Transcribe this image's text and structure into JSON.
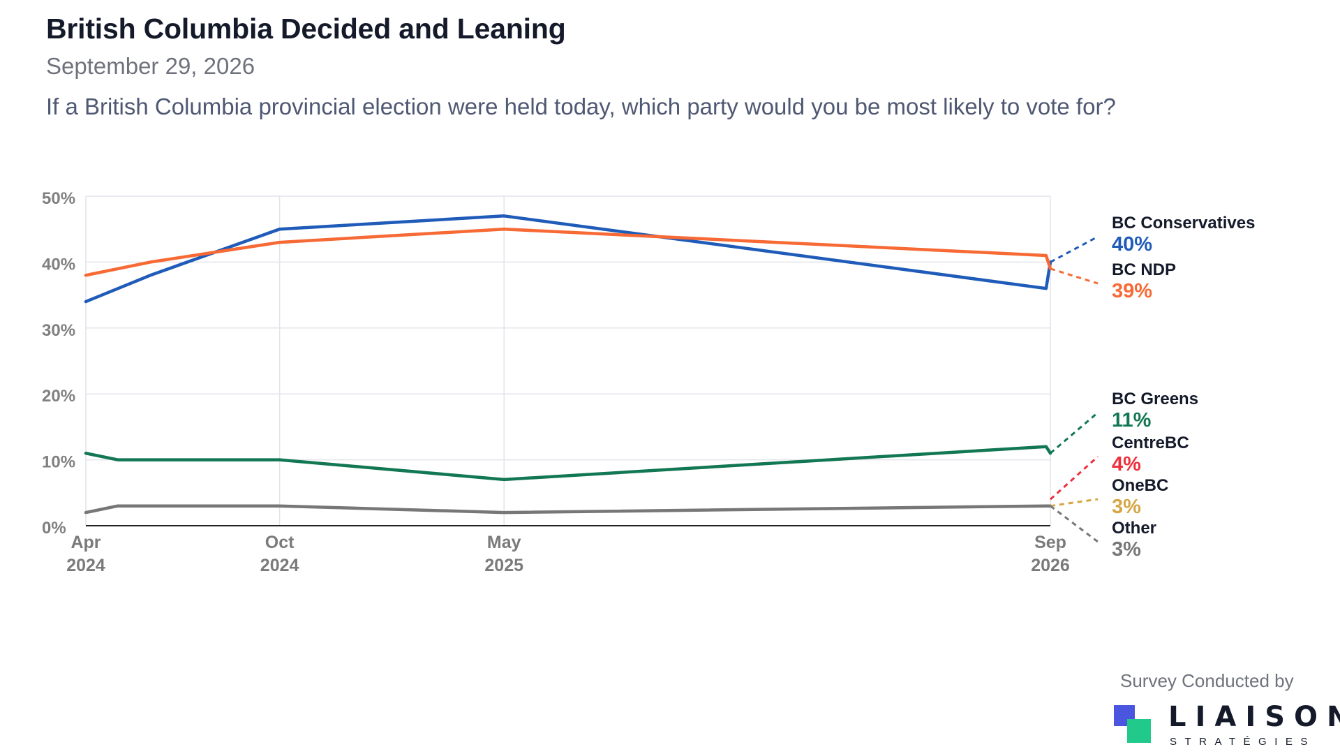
{
  "header": {
    "title": "British Columbia Decided and Leaning",
    "date": "September 29, 2026",
    "question": "If a British Columbia provincial election were held today, which party would you be most likely to vote for?"
  },
  "footer": {
    "credit": "Survey Conducted by",
    "logo_word": "LIAISON",
    "logo_sub": "STRATÉGIES",
    "logo_colors": [
      "#4a55e0",
      "#21c98a"
    ]
  },
  "chart_data": {
    "type": "line",
    "title": "British Columbia Decided and Leaning",
    "ylim": [
      0,
      50
    ],
    "y_ticks": [
      0,
      10,
      20,
      30,
      40,
      50
    ],
    "y_tick_labels": [
      "0%",
      "10%",
      "20%",
      "30%",
      "40%",
      "50%"
    ],
    "xlim": [
      "2024-04-01",
      "2026-09-29"
    ],
    "x_ticks": [
      {
        "date": "2024-04-01",
        "month": "Apr",
        "year": "2024"
      },
      {
        "date": "2024-10-01",
        "month": "Oct",
        "year": "2024"
      },
      {
        "date": "2025-05-01",
        "month": "May",
        "year": "2025"
      },
      {
        "date": "2026-09-29",
        "month": "Sep",
        "year": "2026"
      }
    ],
    "grid": true,
    "legend": "right",
    "series": [
      {
        "name": "BC Conservatives",
        "final_label": "40%",
        "final": 40,
        "color": "#1f5bb8",
        "points": [
          [
            "2024-04-01",
            34
          ],
          [
            "2024-06-01",
            38
          ],
          [
            "2024-10-01",
            45
          ],
          [
            "2025-05-01",
            47
          ],
          [
            "2026-09-25",
            36
          ],
          [
            "2026-09-29",
            40
          ]
        ]
      },
      {
        "name": "BC NDP",
        "final_label": "39%",
        "final": 39,
        "color": "#f76a35",
        "points": [
          [
            "2024-04-01",
            38
          ],
          [
            "2024-06-01",
            40
          ],
          [
            "2024-10-01",
            43
          ],
          [
            "2025-05-01",
            45
          ],
          [
            "2026-09-25",
            41
          ],
          [
            "2026-09-29",
            39
          ]
        ]
      },
      {
        "name": "BC Greens",
        "final_label": "11%",
        "final": 11,
        "color": "#127753",
        "points": [
          [
            "2024-04-01",
            11
          ],
          [
            "2024-05-01",
            10
          ],
          [
            "2024-10-01",
            10
          ],
          [
            "2025-05-01",
            7
          ],
          [
            "2026-09-25",
            12
          ],
          [
            "2026-09-29",
            11
          ]
        ]
      },
      {
        "name": "CentreBC",
        "final_label": "4%",
        "final": 4,
        "color": "#ee2f3c",
        "points": []
      },
      {
        "name": "OneBC",
        "final_label": "3%",
        "final": 3,
        "color": "#d6a544",
        "points": []
      },
      {
        "name": "Other",
        "final_label": "3%",
        "final": 3,
        "color": "#777777",
        "points": [
          [
            "2024-04-01",
            2
          ],
          [
            "2024-05-01",
            3
          ],
          [
            "2024-10-01",
            3
          ],
          [
            "2025-05-01",
            2
          ],
          [
            "2026-09-25",
            3
          ],
          [
            "2026-09-29",
            3
          ]
        ]
      }
    ]
  }
}
